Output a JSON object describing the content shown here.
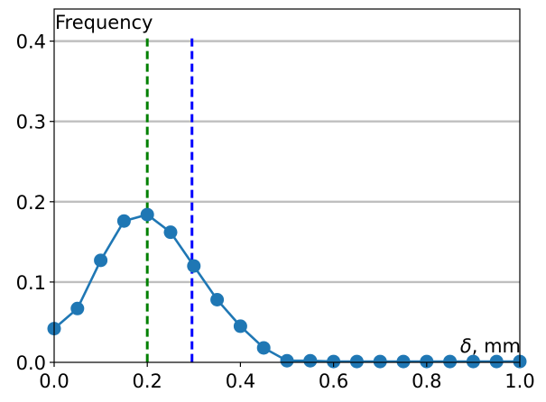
{
  "chart_data": {
    "type": "line",
    "ylabel": "Frequency",
    "xlabel": {
      "symbol": "δ",
      "unit": ", mm"
    },
    "xlim": [
      0.0,
      1.0
    ],
    "ylim": [
      0.0,
      0.44
    ],
    "x_ticks": [
      0.0,
      0.2,
      0.4,
      0.6,
      0.8,
      1.0
    ],
    "x_tick_labels": [
      "0.0",
      "0.2",
      "0.4",
      "0.6",
      "0.8",
      "1.0"
    ],
    "y_ticks": [
      0.0,
      0.1,
      0.2,
      0.3,
      0.4
    ],
    "y_tick_labels": [
      "0.0",
      "0.1",
      "0.2",
      "0.3",
      "0.4"
    ],
    "grid": "horizontal",
    "series": [
      {
        "color": "#1f77b4",
        "x": [
          0.0,
          0.05,
          0.1,
          0.15,
          0.2,
          0.25,
          0.3,
          0.35,
          0.4,
          0.45,
          0.5,
          0.55,
          0.6,
          0.65,
          0.7,
          0.75,
          0.8,
          0.85,
          0.9,
          0.95,
          1.0
        ],
        "y": [
          0.042,
          0.067,
          0.127,
          0.176,
          0.184,
          0.162,
          0.12,
          0.078,
          0.045,
          0.018,
          0.002,
          0.002,
          0.001,
          0.001,
          0.001,
          0.001,
          0.001,
          0.001,
          0.001,
          0.001,
          0.001
        ]
      }
    ],
    "vlines": [
      {
        "x": 0.2,
        "color": "#008000",
        "style": "dashed"
      },
      {
        "x": 0.296,
        "color": "#0000ff",
        "style": "dashed"
      }
    ],
    "grid_color": "#bfbfbf"
  }
}
